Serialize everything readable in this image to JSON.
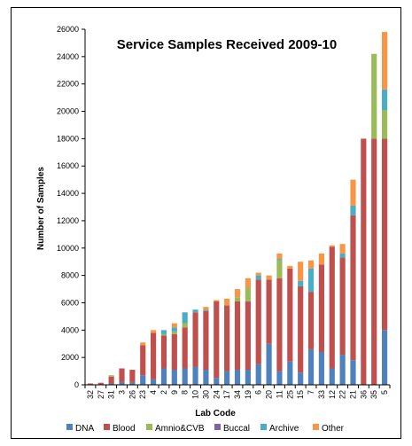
{
  "chart_data": {
    "type": "bar",
    "stacked": true,
    "title": "Service Samples Received 2009-10",
    "xlabel": "Lab Code",
    "ylabel": "Number of Samples",
    "ylim": [
      0,
      26000
    ],
    "yticks": [
      0,
      2000,
      4000,
      6000,
      8000,
      10000,
      12000,
      14000,
      16000,
      18000,
      20000,
      22000,
      24000,
      26000
    ],
    "grid": false,
    "legend_position": "bottom",
    "categories": [
      "32",
      "27",
      "31",
      "3",
      "26",
      "23",
      "4",
      "2",
      "9",
      "8",
      "10",
      "30",
      "24",
      "17",
      "34",
      "19",
      "6",
      "20",
      "11",
      "25",
      "15",
      "7",
      "33",
      "12",
      "22",
      "21",
      "36",
      "35",
      "5"
    ],
    "series": [
      {
        "name": "DNA",
        "color": "#4f81bd",
        "values": [
          0,
          0,
          100,
          200,
          200,
          700,
          400,
          1200,
          1100,
          1200,
          1300,
          1100,
          500,
          1000,
          1100,
          1100,
          1500,
          3000,
          1000,
          1700,
          900,
          2600,
          2400,
          1200,
          2200,
          1800,
          0,
          0,
          4000
        ]
      },
      {
        "name": "Blood",
        "color": "#c0504d",
        "values": [
          100,
          150,
          500,
          1000,
          900,
          2200,
          3400,
          2400,
          2600,
          3000,
          4000,
          4300,
          5600,
          4800,
          5000,
          5000,
          6200,
          4700,
          6800,
          6800,
          6300,
          4200,
          6400,
          8900,
          7100,
          10600,
          18000,
          18000,
          14000
        ]
      },
      {
        "name": "Amnio&CVB",
        "color": "#9bbb59",
        "values": [
          0,
          0,
          100,
          0,
          0,
          0,
          0,
          100,
          200,
          300,
          0,
          0,
          0,
          0,
          300,
          1000,
          0,
          0,
          1300,
          0,
          0,
          0,
          0,
          0,
          0,
          0,
          0,
          6200,
          2100
        ]
      },
      {
        "name": "Buccal",
        "color": "#8064a2",
        "values": [
          0,
          0,
          0,
          0,
          0,
          0,
          0,
          0,
          0,
          0,
          0,
          0,
          0,
          0,
          0,
          0,
          0,
          0,
          0,
          0,
          0,
          0,
          0,
          0,
          0,
          0,
          0,
          0,
          0
        ]
      },
      {
        "name": "Archive",
        "color": "#4bacc6",
        "values": [
          0,
          0,
          0,
          0,
          0,
          0,
          0,
          300,
          300,
          800,
          200,
          100,
          0,
          0,
          0,
          0,
          300,
          0,
          100,
          0,
          400,
          1700,
          0,
          0,
          300,
          700,
          0,
          0,
          1500
        ]
      },
      {
        "name": "Other",
        "color": "#f79646",
        "values": [
          0,
          0,
          0,
          0,
          0,
          200,
          200,
          0,
          300,
          0,
          0,
          200,
          100,
          500,
          600,
          700,
          200,
          300,
          400,
          200,
          1400,
          600,
          800,
          100,
          700,
          1900,
          0,
          0,
          4200
        ]
      }
    ]
  }
}
